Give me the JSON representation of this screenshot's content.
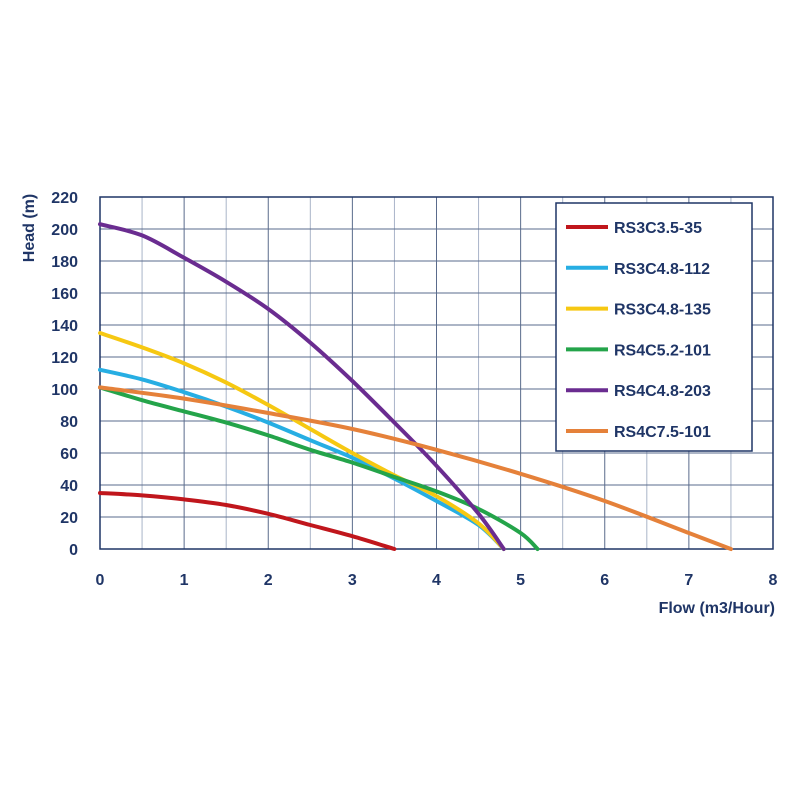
{
  "chart_data": {
    "type": "line",
    "xlabel": "Flow (m3/Hour)",
    "ylabel": "Head (m)",
    "xlim": [
      0,
      8
    ],
    "ylim": [
      0,
      220
    ],
    "xticks": [
      0,
      1,
      2,
      3,
      4,
      5,
      6,
      7,
      8
    ],
    "yticks": [
      0,
      20,
      40,
      60,
      80,
      100,
      120,
      140,
      160,
      180,
      200,
      220
    ],
    "grid": true,
    "legend_position": "top-right",
    "axis_color": "#1f3566",
    "series": [
      {
        "name": "RS3C3.5-35",
        "color": "#c0161c",
        "x": [
          0,
          0.5,
          1,
          1.5,
          2,
          2.5,
          3,
          3.5
        ],
        "y": [
          35,
          33.5,
          31,
          27.5,
          22,
          15,
          8,
          0
        ]
      },
      {
        "name": "RS3C4.8-112",
        "color": "#27aee3",
        "x": [
          0,
          0.5,
          1,
          1.5,
          2,
          2.5,
          3,
          3.5,
          4,
          4.5,
          4.8
        ],
        "y": [
          112,
          106,
          98,
          89,
          79,
          68,
          57,
          44,
          30,
          15,
          0
        ]
      },
      {
        "name": "RS3C4.8-135",
        "color": "#f6c812",
        "x": [
          0,
          0.5,
          1,
          1.5,
          2,
          2.5,
          3,
          3.5,
          4,
          4.5,
          4.8
        ],
        "y": [
          135,
          126,
          116,
          104,
          90,
          75,
          60,
          46,
          33,
          16,
          0
        ]
      },
      {
        "name": "RS4C5.2-101",
        "color": "#24a44a",
        "x": [
          0,
          0.5,
          1,
          1.5,
          2,
          2.5,
          3,
          3.5,
          4,
          4.5,
          5,
          5.2
        ],
        "y": [
          101,
          93,
          86,
          79,
          71,
          62,
          54,
          45,
          36,
          25,
          10,
          0
        ]
      },
      {
        "name": "RS4C4.8-203",
        "color": "#6a2c90",
        "x": [
          0,
          0.5,
          1,
          1.5,
          2,
          2.5,
          3,
          3.5,
          4,
          4.5,
          4.8
        ],
        "y": [
          203,
          196,
          182,
          167,
          150,
          129,
          105,
          79,
          52,
          22,
          0
        ]
      },
      {
        "name": "RS4C7.5-101",
        "color": "#e5813a",
        "x": [
          0,
          1,
          2,
          3,
          4,
          5,
          6,
          7,
          7.5
        ],
        "y": [
          101,
          94,
          85,
          75,
          62,
          47,
          30,
          10,
          0
        ]
      }
    ]
  }
}
